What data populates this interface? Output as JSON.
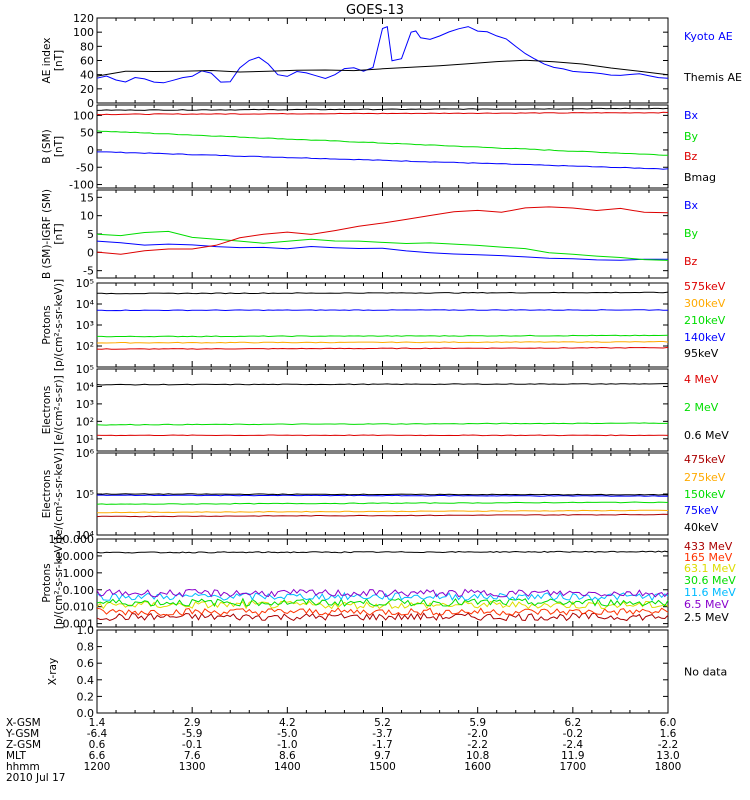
{
  "title": "GOES-13",
  "colors": {
    "black": "#000000",
    "blue": "#0000ff",
    "red": "#dd0000",
    "green": "#00dd00",
    "orange": "#ffaa00",
    "purple": "#8800cc",
    "cyan": "#00bbff",
    "yellow": "#dddd00",
    "darkred": "#aa0000"
  },
  "chart_data": [
    {
      "type": "line",
      "panel": "ae",
      "ylabel": "AE index\n[nT]",
      "ylim": [
        0,
        120
      ],
      "log": false,
      "ticks": [
        "0",
        "20",
        "40",
        "60",
        "80",
        "100",
        "120"
      ],
      "tickvals": [
        0,
        20,
        40,
        60,
        80,
        100,
        120
      ],
      "series": [
        {
          "name": "Kyoto AE",
          "color": "#0000ff",
          "x": [
            1200,
            1210,
            1220,
            1230,
            1240,
            1250,
            1260,
            1270,
            1280,
            1290,
            1300,
            1310,
            1320,
            1330,
            1340,
            1350,
            1360,
            1370,
            1380,
            1390,
            1400,
            1410,
            1420,
            1430,
            1440,
            1450,
            1460,
            1470,
            1480,
            1490,
            1500,
            1505,
            1510,
            1520,
            1530,
            1535,
            1540,
            1550,
            1560,
            1570,
            1580,
            1590,
            1600,
            1610,
            1620,
            1630,
            1640,
            1650,
            1660,
            1670,
            1680,
            1690,
            1700,
            1710,
            1720,
            1730,
            1740,
            1750,
            1760,
            1770,
            1780,
            1790,
            1800
          ],
          "y": [
            35,
            38,
            33,
            30,
            36,
            34,
            30,
            28,
            32,
            36,
            38,
            45,
            42,
            30,
            30,
            50,
            60,
            65,
            55,
            40,
            38,
            45,
            42,
            38,
            35,
            40,
            48,
            50,
            45,
            50,
            105,
            108,
            60,
            62,
            100,
            102,
            92,
            90,
            95,
            100,
            105,
            108,
            102,
            100,
            95,
            90,
            80,
            70,
            62,
            55,
            50,
            48,
            45,
            44,
            43,
            42,
            40,
            39,
            40,
            41,
            38,
            36,
            35
          ]
        },
        {
          "name": "Themis AE",
          "color": "#000000",
          "x": [
            1200,
            1230,
            1260,
            1290,
            1320,
            1350,
            1380,
            1410,
            1440,
            1470,
            1500,
            1530,
            1560,
            1590,
            1620,
            1650,
            1680,
            1710,
            1740,
            1770,
            1800
          ],
          "y": [
            38,
            45,
            44,
            45,
            46,
            44,
            45,
            46,
            47,
            46,
            48,
            50,
            52,
            55,
            58,
            60,
            58,
            55,
            50,
            45,
            40
          ]
        }
      ]
    },
    {
      "type": "line",
      "panel": "b",
      "ylabel": "B (SM)\n[nT]",
      "ylim": [
        -110,
        130
      ],
      "log": false,
      "ticks": [
        "-100",
        "-50",
        "0",
        "50",
        "100"
      ],
      "tickvals": [
        -100,
        -50,
        0,
        50,
        100
      ],
      "series": [
        {
          "name": "Bx",
          "color": "#0000ff",
          "x": [
            1200,
            1800
          ],
          "y": [
            -5,
            -55
          ]
        },
        {
          "name": "By",
          "color": "#00dd00",
          "x": [
            1200,
            1800
          ],
          "y": [
            55,
            -15
          ]
        },
        {
          "name": "Bz",
          "color": "#dd0000",
          "x": [
            1200,
            1800
          ],
          "y": [
            103,
            108
          ]
        },
        {
          "name": "Bmag",
          "color": "#000000",
          "x": [
            1200,
            1800
          ],
          "y": [
            115,
            120
          ]
        }
      ]
    },
    {
      "type": "line",
      "panel": "db",
      "ylabel": "B (SM)-IGRF (SM)\n[nT]",
      "ylim": [
        -7,
        17
      ],
      "log": false,
      "ticks": [
        "-5",
        "0",
        "5",
        "10",
        "15"
      ],
      "tickvals": [
        -5,
        0,
        5,
        10,
        15
      ],
      "series": [
        {
          "name": "Bx",
          "color": "#0000ff",
          "x": [
            1200,
            1225,
            1250,
            1275,
            1300,
            1325,
            1350,
            1375,
            1400,
            1425,
            1450,
            1475,
            1500,
            1525,
            1550,
            1575,
            1600,
            1625,
            1650,
            1675,
            1700,
            1725,
            1750,
            1775,
            1800
          ],
          "y": [
            3,
            2.5,
            2,
            2.2,
            2,
            1.5,
            1.2,
            1.3,
            1,
            1.5,
            1.2,
            1,
            1,
            0.5,
            0,
            -0.5,
            -0.8,
            -1,
            -1.2,
            -1.5,
            -1.8,
            -2,
            -2.2,
            -2,
            -1.8
          ]
        },
        {
          "name": "By",
          "color": "#00dd00",
          "x": [
            1200,
            1225,
            1250,
            1275,
            1300,
            1325,
            1350,
            1375,
            1400,
            1425,
            1450,
            1475,
            1500,
            1525,
            1550,
            1575,
            1600,
            1625,
            1650,
            1675,
            1700,
            1725,
            1750,
            1775,
            1800
          ],
          "y": [
            5,
            4.5,
            5.5,
            5.8,
            4,
            3.5,
            3,
            2.5,
            3,
            3.5,
            3.2,
            3,
            2.8,
            2.5,
            2.5,
            2.2,
            2,
            1.5,
            1,
            0,
            -0.5,
            -1,
            -1.5,
            -2,
            -2.2
          ]
        },
        {
          "name": "Bz",
          "color": "#dd0000",
          "x": [
            1200,
            1225,
            1250,
            1275,
            1300,
            1325,
            1350,
            1375,
            1400,
            1425,
            1450,
            1475,
            1500,
            1525,
            1550,
            1575,
            1600,
            1625,
            1650,
            1675,
            1700,
            1725,
            1750,
            1775,
            1800
          ],
          "y": [
            0,
            -0.5,
            0.5,
            1,
            1,
            2,
            4,
            5,
            5.5,
            5,
            6,
            7,
            8,
            9,
            10,
            11,
            11.5,
            11,
            12,
            12.5,
            12,
            11.5,
            12,
            11,
            10.8
          ]
        }
      ]
    },
    {
      "type": "line",
      "panel": "protons",
      "ylabel": "Protons\n[p/(cm²-s-sr-keV)]",
      "ylim": [
        1,
        5
      ],
      "log": true,
      "ticks": [
        "10²",
        "10³",
        "10⁴",
        "10⁵"
      ],
      "tickvals": [
        2,
        3,
        4,
        5
      ],
      "series": [
        {
          "name": "575keV",
          "color": "#dd0000",
          "x": [
            1200,
            1800
          ],
          "y": [
            1.85,
            1.92
          ]
        },
        {
          "name": "300keV",
          "color": "#ffaa00",
          "x": [
            1200,
            1800
          ],
          "y": [
            2.15,
            2.2
          ]
        },
        {
          "name": "210keV",
          "color": "#00dd00",
          "x": [
            1200,
            1800
          ],
          "y": [
            2.45,
            2.5
          ]
        },
        {
          "name": "140keV",
          "color": "#0000ff",
          "x": [
            1200,
            1800
          ],
          "y": [
            3.7,
            3.72
          ]
        },
        {
          "name": "95keV",
          "color": "#000000",
          "x": [
            1200,
            1800
          ],
          "y": [
            4.5,
            4.55
          ]
        }
      ]
    },
    {
      "type": "line",
      "panel": "electrons_mev",
      "ylabel": "Electrons\n[e/(cm²-s-sr)]",
      "ylim": [
        0.3,
        5
      ],
      "log": true,
      "ticks": [
        "10¹",
        "10²",
        "10³",
        "10⁴",
        "10⁵"
      ],
      "tickvals": [
        1,
        2,
        3,
        4,
        5
      ],
      "series": [
        {
          "name": "4 MeV",
          "color": "#dd0000",
          "x": [
            1200,
            1800
          ],
          "y": [
            1.2,
            1.2
          ]
        },
        {
          "name": "2 MeV",
          "color": "#00dd00",
          "x": [
            1200,
            1800
          ],
          "y": [
            1.8,
            1.9
          ]
        },
        {
          "name": "0.6 MeV",
          "color": "#000000",
          "x": [
            1200,
            1800
          ],
          "y": [
            4.1,
            4.15
          ]
        }
      ]
    },
    {
      "type": "line",
      "panel": "electrons_kev",
      "ylabel": "Electrons\n[e/(cm²-s-sr-keV)]",
      "ylim": [
        4,
        6
      ],
      "log": true,
      "ticks": [
        "10⁴",
        "10⁵",
        "10⁶"
      ],
      "tickvals": [
        4,
        5,
        6
      ],
      "series": [
        {
          "name": "475keV",
          "color": "#aa0000",
          "x": [
            1200,
            1800
          ],
          "y": [
            4.45,
            4.5
          ]
        },
        {
          "name": "275keV",
          "color": "#ffaa00",
          "x": [
            1200,
            1800
          ],
          "y": [
            4.55,
            4.6
          ]
        },
        {
          "name": "150keV",
          "color": "#00dd00",
          "x": [
            1200,
            1800
          ],
          "y": [
            4.75,
            4.8
          ]
        },
        {
          "name": "75keV",
          "color": "#0000ff",
          "x": [
            1200,
            1800
          ],
          "y": [
            4.97,
            4.95
          ]
        },
        {
          "name": "40keV",
          "color": "#000000",
          "x": [
            1200,
            1800
          ],
          "y": [
            5,
            4.98
          ]
        }
      ]
    },
    {
      "type": "line",
      "panel": "protons_mev",
      "ylabel": "Protons\n[p/(cm²-s-sr-keV)]",
      "ylim": [
        -3.2,
        2
      ],
      "log": true,
      "ticks": [
        "0.001",
        "0.010",
        "0.100",
        "1.000",
        "10.000",
        "100.000"
      ],
      "tickvals": [
        -3,
        -2,
        -1,
        0,
        1,
        2
      ],
      "series": [
        {
          "name": "433 MeV",
          "color": "#aa0000",
          "x": [
            1200,
            1800
          ],
          "y": [
            -2.6,
            -2.6
          ]
        },
        {
          "name": "165 MeV",
          "color": "#ff3300",
          "x": [
            1200,
            1800
          ],
          "y": [
            -2.3,
            -2.3
          ]
        },
        {
          "name": "63.1 MeV",
          "color": "#dddd00",
          "x": [
            1200,
            1800
          ],
          "y": [
            -1.9,
            -1.9
          ]
        },
        {
          "name": "30.6 MeV",
          "color": "#00dd00",
          "x": [
            1200,
            1800
          ],
          "y": [
            -1.75,
            -1.75
          ]
        },
        {
          "name": "11.6 MeV",
          "color": "#00bbff",
          "x": [
            1200,
            1800
          ],
          "y": [
            -1.4,
            -1.4
          ]
        },
        {
          "name": "6.5 MeV",
          "color": "#8800cc",
          "x": [
            1200,
            1800
          ],
          "y": [
            -1.2,
            -1.2
          ]
        },
        {
          "name": "2.5 MeV",
          "color": "#000000",
          "x": [
            1200,
            1800
          ],
          "y": [
            1.2,
            1.25
          ]
        }
      ]
    },
    {
      "type": "line",
      "panel": "xray",
      "ylabel": "X-ray",
      "ylim": [
        0,
        1
      ],
      "log": false,
      "ticks": [
        "0.0",
        "0.2",
        "0.4",
        "0.6",
        "0.8",
        "1.0"
      ],
      "tickvals": [
        0,
        0.2,
        0.4,
        0.6,
        0.8,
        1.0
      ],
      "series": [],
      "note": "No data"
    }
  ],
  "xaxis": {
    "range": [
      1200,
      1800
    ],
    "rows": [
      {
        "label": "X-GSM",
        "values": [
          "1.4",
          "2.9",
          "4.2",
          "5.2",
          "5.9",
          "6.2",
          "6.0"
        ]
      },
      {
        "label": "Y-GSM",
        "values": [
          "-6.4",
          "-5.9",
          "-5.0",
          "-3.7",
          "-2.0",
          "-0.2",
          "1.6"
        ]
      },
      {
        "label": "Z-GSM",
        "values": [
          "0.6",
          "-0.1",
          "-1.0",
          "-1.7",
          "-2.2",
          "-2.4",
          "-2.2"
        ]
      },
      {
        "label": "MLT",
        "values": [
          "6.6",
          "7.6",
          "8.6",
          "9.7",
          "10.8",
          "11.9",
          "13.0"
        ]
      },
      {
        "label": "hhmm",
        "values": [
          "1200",
          "1300",
          "1400",
          "1500",
          "1600",
          "1700",
          "1800"
        ]
      }
    ],
    "date": "2010 Jul 17"
  }
}
